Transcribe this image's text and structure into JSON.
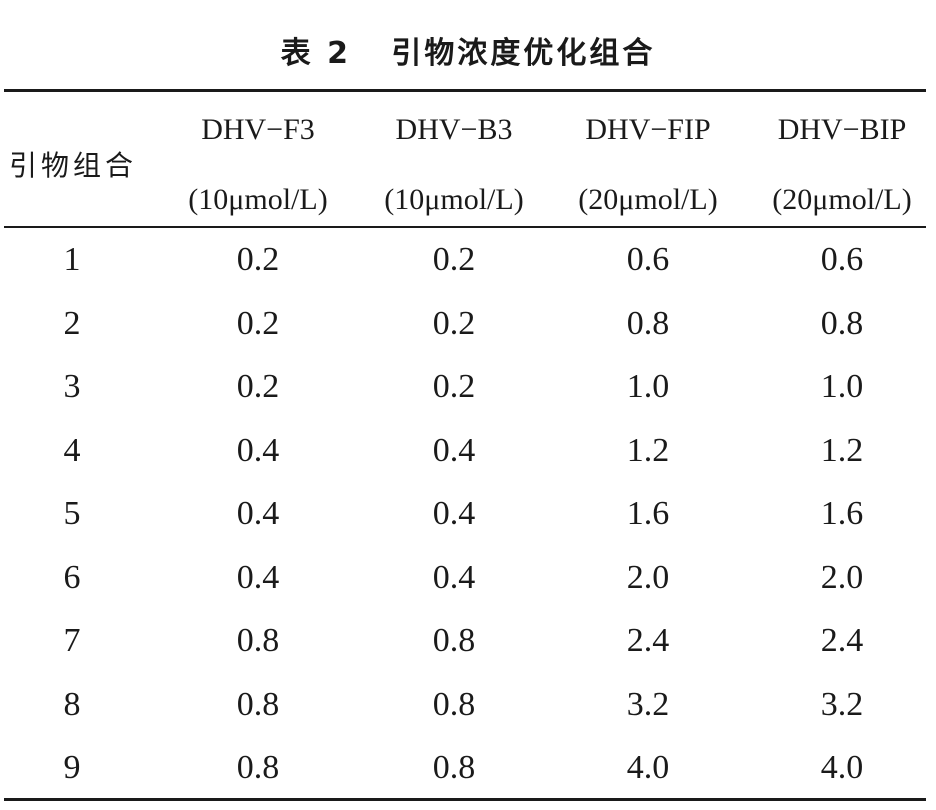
{
  "caption": "表 2   引物浓度优化组合",
  "header": {
    "row_label": "引物组合",
    "columns": [
      {
        "name": "DHV−F3",
        "unit": "(10μmol/L)"
      },
      {
        "name": "DHV−B3",
        "unit": "(10μmol/L)"
      },
      {
        "name": "DHV−FIP",
        "unit": "(20μmol/L)"
      },
      {
        "name": "DHV−BIP",
        "unit": "(20μmol/L)"
      }
    ]
  },
  "rows": [
    [
      "1",
      "0.2",
      "0.2",
      "0.6",
      "0.6"
    ],
    [
      "2",
      "0.2",
      "0.2",
      "0.8",
      "0.8"
    ],
    [
      "3",
      "0.2",
      "0.2",
      "1.0",
      "1.0"
    ],
    [
      "4",
      "0.4",
      "0.4",
      "1.2",
      "1.2"
    ],
    [
      "5",
      "0.4",
      "0.4",
      "1.6",
      "1.6"
    ],
    [
      "6",
      "0.4",
      "0.4",
      "2.0",
      "2.0"
    ],
    [
      "7",
      "0.8",
      "0.8",
      "2.4",
      "2.4"
    ],
    [
      "8",
      "0.8",
      "0.8",
      "3.2",
      "3.2"
    ],
    [
      "9",
      "0.8",
      "0.8",
      "4.0",
      "4.0"
    ]
  ]
}
